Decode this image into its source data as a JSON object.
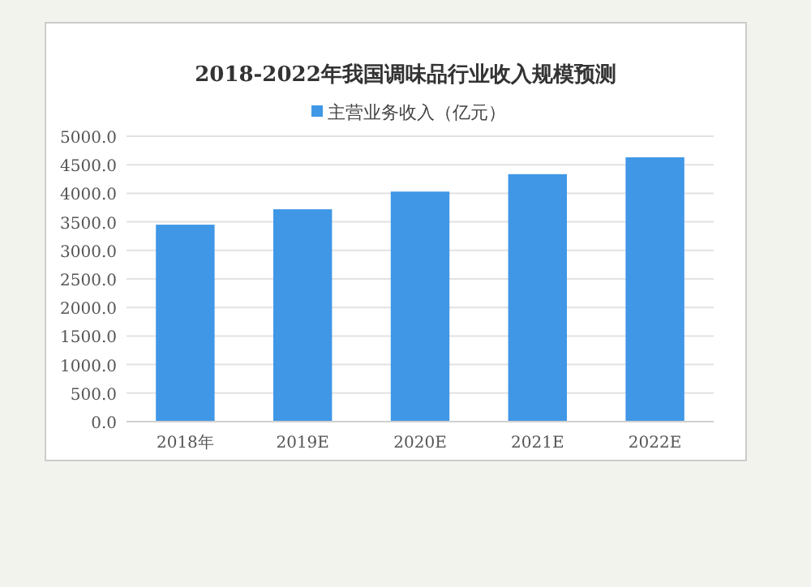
{
  "chart_data": {
    "type": "bar",
    "title": "2018-2022年我国调味品行业收入规模预测",
    "categories": [
      "2018年",
      "2019E",
      "2020E",
      "2021E",
      "2022E"
    ],
    "series": [
      {
        "name": "主营业务收入（亿元）",
        "color": "#3f97e6",
        "values": [
          3450,
          3720,
          4030,
          4335,
          4630
        ]
      }
    ],
    "ylim": [
      0,
      5000
    ],
    "yticks": [
      {
        "value": 0,
        "label": "0.0"
      },
      {
        "value": 500,
        "label": "500.0"
      },
      {
        "value": 1000,
        "label": "1000.0"
      },
      {
        "value": 1500,
        "label": "1500.0"
      },
      {
        "value": 2000,
        "label": "2000.0"
      },
      {
        "value": 2500,
        "label": "2500.0"
      },
      {
        "value": 3000,
        "label": "3000.0"
      },
      {
        "value": 3500,
        "label": "3500.0"
      },
      {
        "value": 4000,
        "label": "4000.0"
      },
      {
        "value": 4500,
        "label": "4500.0"
      },
      {
        "value": 5000,
        "label": "5000.0"
      }
    ],
    "grid": "y",
    "legend": "top"
  }
}
